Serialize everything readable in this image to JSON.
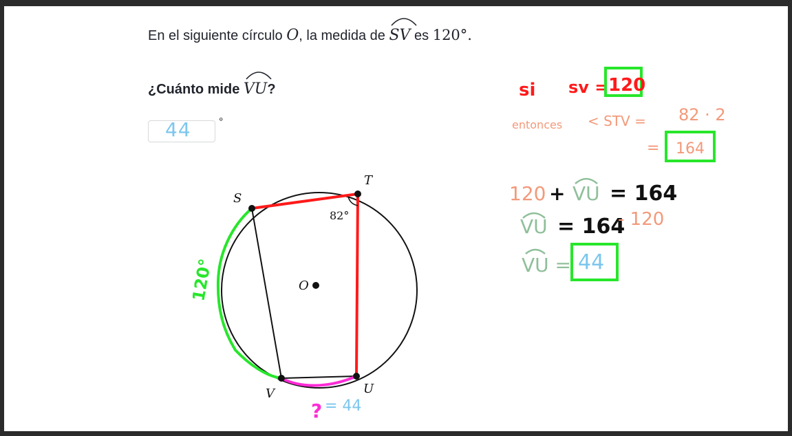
{
  "question": {
    "line1_prefix": "En el siguiente círculo",
    "circle_var": "O",
    "line1_mid": ", la medida de",
    "arc_given": "SV",
    "line1_es": "es",
    "given_value": "120°.",
    "line2_prefix": "¿Cuánto mide",
    "arc_asked": "VU",
    "line2_suffix": "?"
  },
  "answer": {
    "value": "44",
    "unit": "°"
  },
  "diagram": {
    "labels": {
      "S": "S",
      "T": "T",
      "U": "U",
      "V": "V",
      "O": "O"
    },
    "angle_label": "82°",
    "arc_note_120": "120°",
    "arc_note_q": "?",
    "arc_note_eq": "= 44"
  },
  "notes": {
    "si": "si",
    "sv_eq": "sv =",
    "sv_value": "120",
    "entonces": "entonces",
    "stv_expr": "< STV =",
    "stv_mult": "82 · 2",
    "eq_sign": "=",
    "stv_result": "164",
    "line3_a": "120",
    "line3_plus": "+",
    "line3_vu": "VU",
    "line3_eq": "= 164",
    "line4_vu": "VU",
    "line4_eq": "= 164",
    "line4_minus": "- 120",
    "line5_vu": "VU =",
    "line5_result": "44"
  },
  "colors": {
    "red": "#ff1a1a",
    "green": "#27e62b",
    "orange": "#f3997a",
    "sage": "#8fbf9a",
    "blue": "#7cc6ee",
    "magenta": "#ff2bd6",
    "black": "#111111"
  }
}
